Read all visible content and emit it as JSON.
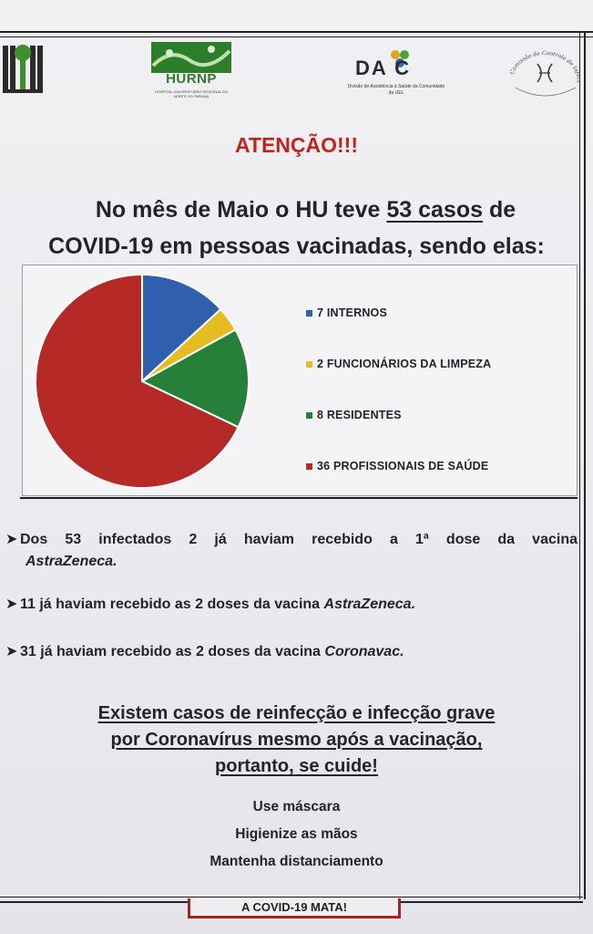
{
  "logos": {
    "hurnp": {
      "name": "HURNP",
      "subtitle": "HOSPITAL UNIVERSITÁRIO REGIONAL DO NORTE DO PARANÁ"
    },
    "dac": {
      "name": "DA C",
      "subtitle": "Divisão de Assistência à Saúde da Comunidade da UEL"
    },
    "circle": {
      "name": "Comissão de Controle de Infecção Hospitalar"
    }
  },
  "title": "ATENÇÃO!!!",
  "intro": {
    "before": "No mês de Maio o HU teve ",
    "highlight": "53 casos",
    "after": " de",
    "line2": "COVID-19 em pessoas vacinadas, sendo elas:"
  },
  "chart_data": {
    "type": "pie",
    "total": 53,
    "slices": [
      {
        "label": "7 INTERNOS",
        "value": 7,
        "color": "#2f5fae"
      },
      {
        "label": "2 FUNCIONÁRIOS DA LIMPEZA",
        "value": 2,
        "color": "#e5bd22"
      },
      {
        "label": "8 RESIDENTES",
        "value": 8,
        "color": "#27803a"
      },
      {
        "label": "36 PROFISSIONAIS DE SAÚDE",
        "value": 36,
        "color": "#b52a26"
      }
    ],
    "legend_position": "right"
  },
  "bullets": [
    {
      "text": "Dos 53 infectados 2 já haviam recebido a 1ª dose da vacina",
      "vaccine": "AstraZeneca."
    },
    {
      "text": "11 já haviam recebido as 2 doses da vacina ",
      "vaccine": "AstraZeneca."
    },
    {
      "text": "31 já haviam recebido as 2 doses da vacina ",
      "vaccine": "Coronavac."
    }
  ],
  "warning": [
    "Existem casos de reinfecção e infecção grave",
    "por Coronavírus mesmo após a vacinação,",
    "portanto, se cuide!"
  ],
  "tips": [
    "Use máscara",
    "Higienize as mãos",
    "Mantenha distanciamento"
  ],
  "footer": "A COVID-19 MATA!",
  "colors": {
    "title": "#c4221c",
    "footer_border": "#a12623"
  }
}
